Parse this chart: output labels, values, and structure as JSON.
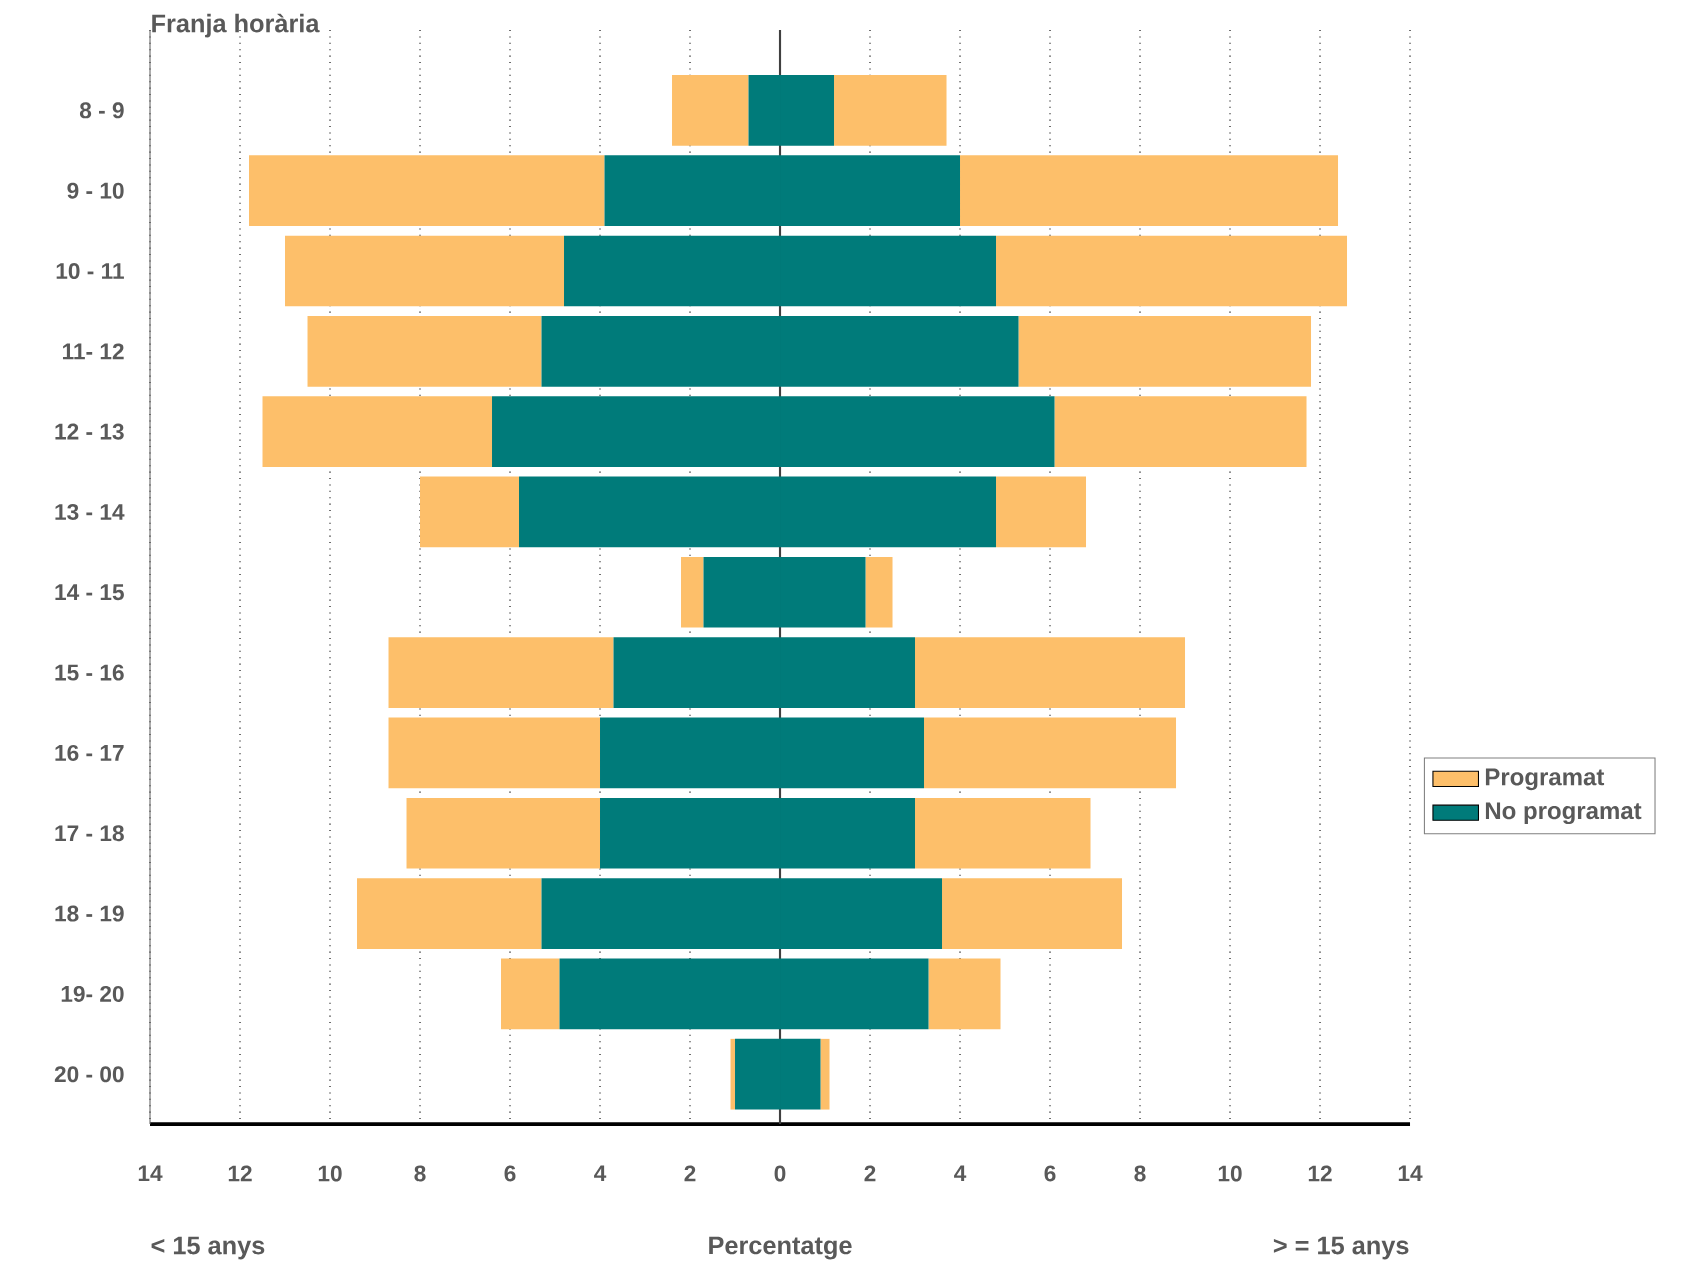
{
  "chart_data": {
    "type": "bar",
    "orientation": "horizontal",
    "stacked": true,
    "ylabel": "Franja horària",
    "xlabel": "Percentatge",
    "annotations": [
      "< 15 anys",
      "> = 15 anys"
    ],
    "categories": [
      "8 - 9",
      "9 - 10",
      "10 - 11",
      "11- 12",
      "12 - 13",
      "13 - 14",
      "14 - 15",
      "15 - 16",
      "16 - 17",
      "17 - 18",
      "18 - 19",
      "19- 20",
      "20 - 00"
    ],
    "series": [
      {
        "name": "No programat",
        "color": "#007b7a",
        "values": [
          -0.7,
          -3.9,
          -4.8,
          -5.3,
          -6.4,
          -5.8,
          -1.7,
          -3.7,
          -4.0,
          -4.0,
          -5.3,
          -4.9,
          -1.0
        ]
      },
      {
        "name": "Programat",
        "color": "#fdbf6a",
        "values": [
          -1.7,
          -7.9,
          -6.2,
          -5.2,
          -5.1,
          -2.2,
          -0.5,
          -5.0,
          -4.7,
          -4.3,
          -4.1,
          -1.3,
          -0.1
        ]
      },
      {
        "color": "#007b7a",
        "values": [
          1.2,
          4.0,
          4.8,
          5.3,
          6.1,
          4.8,
          1.9,
          3.0,
          3.2,
          3.0,
          3.6,
          3.3,
          0.9
        ]
      },
      {
        "color": "#fdbf6a",
        "values": [
          2.5,
          8.4,
          7.8,
          6.5,
          5.6,
          2.0,
          0.6,
          6.0,
          5.6,
          3.9,
          4.0,
          1.6,
          0.2
        ]
      }
    ],
    "xlim": [
      -14,
      14
    ],
    "xticks": [
      {
        "value": -14,
        "label": "14"
      },
      {
        "value": -12,
        "label": "12"
      },
      {
        "value": -10,
        "label": "10"
      },
      {
        "value": -8,
        "label": "8"
      },
      {
        "value": -6,
        "label": "6"
      },
      {
        "value": -4,
        "label": "4"
      },
      {
        "value": -2,
        "label": "2"
      },
      0,
      2,
      4,
      6,
      8,
      10,
      12,
      14
    ],
    "grid": "x",
    "legend": "right"
  }
}
